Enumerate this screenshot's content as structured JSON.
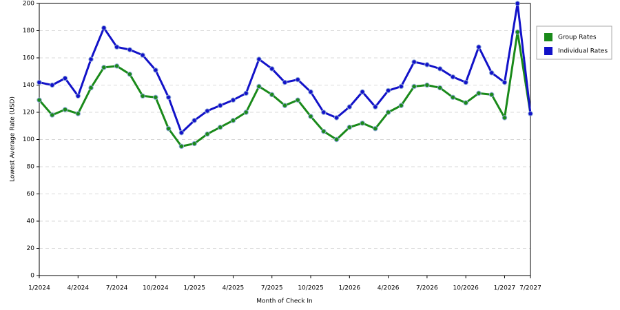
{
  "chart_data": {
    "type": "line",
    "x_label": "Month of Check In",
    "y_label": "Lowest Average Rate (USD)",
    "categories": [
      "1/2024",
      null,
      null,
      "4/2024",
      null,
      null,
      "7/2024",
      null,
      null,
      "10/2024",
      null,
      null,
      "1/2025",
      null,
      null,
      "4/2025",
      null,
      null,
      "7/2025",
      null,
      null,
      "10/2025",
      null,
      null,
      "1/2026",
      null,
      null,
      "4/2026",
      null,
      null,
      "7/2026",
      null,
      null,
      "10/2026",
      null,
      null,
      "1/2027",
      null,
      "7/2027"
    ],
    "series": [
      {
        "name": "Group Rates",
        "color": "#1a8a1a",
        "values": [
          129,
          118,
          122,
          119,
          138,
          153,
          154,
          148,
          132,
          131,
          108,
          95,
          97,
          104,
          109,
          114,
          120,
          139,
          133,
          125,
          129,
          117,
          106,
          100,
          109,
          112,
          108,
          120,
          125,
          139,
          140,
          138,
          131,
          127,
          134,
          133,
          116,
          179,
          119
        ]
      },
      {
        "name": "Individual Rates",
        "color": "#1212c8",
        "values": [
          142,
          140,
          145,
          132,
          159,
          182,
          168,
          166,
          162,
          151,
          131,
          105,
          114,
          121,
          125,
          129,
          134,
          159,
          152,
          142,
          144,
          135,
          120,
          116,
          124,
          135,
          124,
          136,
          139,
          157,
          155,
          152,
          146,
          142,
          168,
          149,
          142,
          200,
          119
        ]
      }
    ],
    "ylim": [
      0,
      200
    ],
    "yticks": [
      0,
      20,
      40,
      60,
      80,
      100,
      120,
      140,
      160,
      180,
      200
    ],
    "grid": true,
    "legend": "right"
  }
}
